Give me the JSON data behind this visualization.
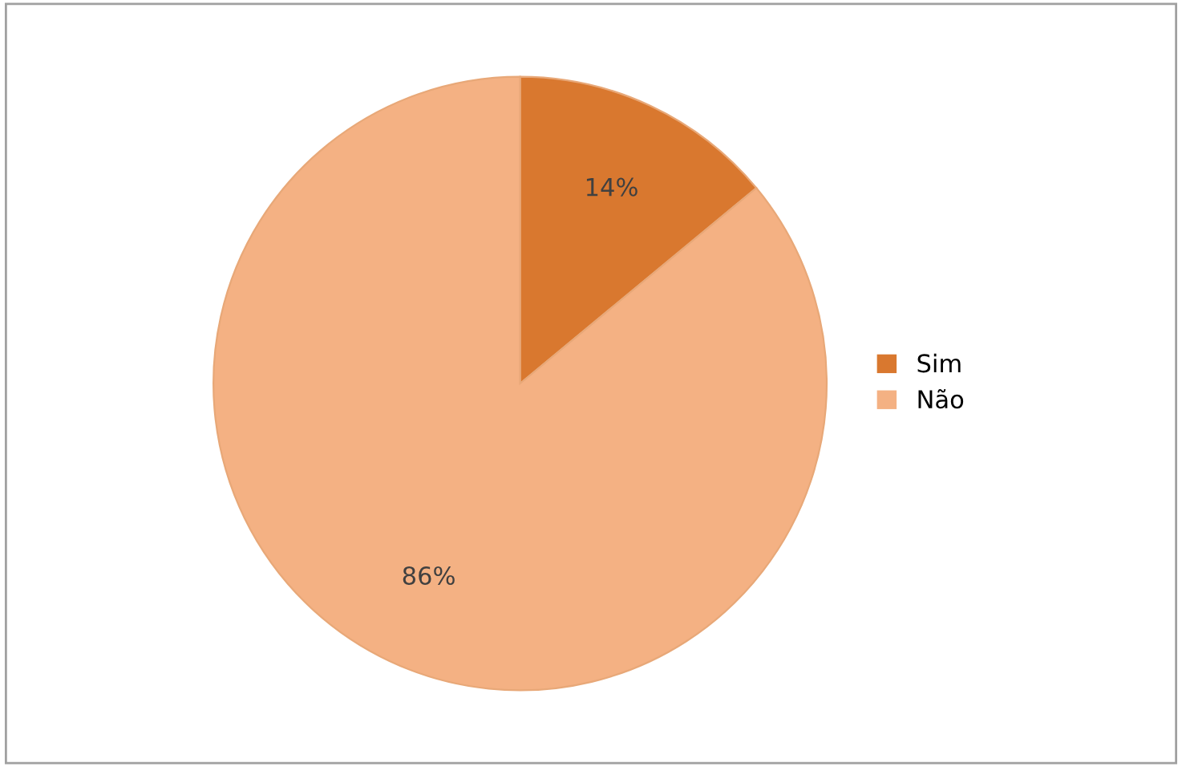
{
  "chart_data": {
    "type": "pie",
    "categories": [
      "Sim",
      "Não"
    ],
    "values": [
      14,
      86
    ],
    "colors": [
      "#d9782f",
      "#f4b183"
    ],
    "value_labels": [
      "14%",
      "86%"
    ],
    "legend": "right"
  }
}
